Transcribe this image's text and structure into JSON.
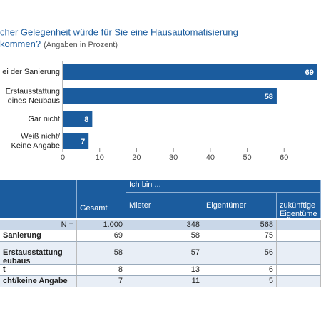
{
  "chart_data": {
    "type": "bar",
    "orientation": "horizontal",
    "title": [
      "cher Gelegenheit würde für Sie eine Hausautomatisierung",
      "kommen?"
    ],
    "subtitle": "(Angaben in Prozent)",
    "categories": [
      "ei der Sanierung",
      "Erstausstattung\neines Neubaus",
      "Gar nicht",
      "Weiß nicht/\nKeine Angabe"
    ],
    "values": [
      69,
      58,
      8,
      7
    ],
    "color": "#1b5c9e",
    "xlim": [
      0,
      70
    ],
    "xticks": [
      0,
      10,
      20,
      30,
      40,
      50,
      60
    ]
  },
  "table": {
    "group_header": "Ich bin ...",
    "columns": [
      "",
      "Gesamt",
      "Mieter",
      "Eigentümer",
      "zukünftige\nEigentüme"
    ],
    "rows": [
      [
        "N =",
        "1.000",
        "348",
        "568",
        ""
      ],
      [
        "Sanierung",
        "69",
        "58",
        "75",
        ""
      ],
      [
        "Erstausstattung\neubaus",
        "58",
        "57",
        "56",
        ""
      ],
      [
        "t",
        "8",
        "13",
        "6",
        ""
      ],
      [
        "cht/keine Angabe",
        "7",
        "11",
        "5",
        ""
      ]
    ]
  }
}
